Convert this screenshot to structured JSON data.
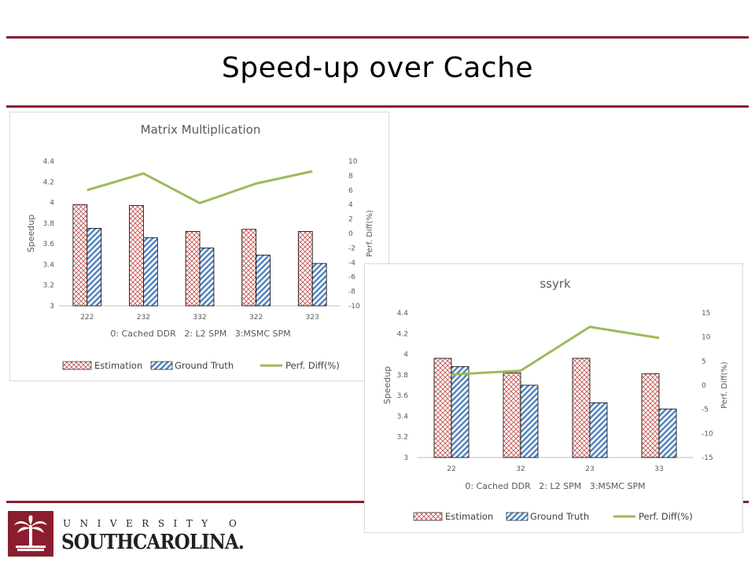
{
  "slide": {
    "title": "Speed-up over Cache",
    "logo_top": "UNIVERSITY OF",
    "logo_bottom": "SOUTHCAROLINA.",
    "rule_color": "#8b1e2e",
    "logo_color": "#8b1e2e"
  },
  "chart_data": [
    {
      "type": "bar",
      "title": "Matrix Multiplication",
      "xlabel": "0: Cached DDR   2: L2 SPM   3:MSMC SPM",
      "ylabel": "Speedup",
      "y2label": "Perf. Diff(%)",
      "ylim": [
        3,
        4.4
      ],
      "yticks": [
        "3",
        "3.2",
        "3.4",
        "3.6",
        "3.8",
        "4",
        "4.2",
        "4.4"
      ],
      "y2lim": [
        -10,
        10
      ],
      "y2ticks": [
        "-10",
        "-8",
        "-6",
        "-4",
        "-2",
        "0",
        "2",
        "4",
        "6",
        "8",
        "10"
      ],
      "categories": [
        "222",
        "232",
        "332",
        "322",
        "323"
      ],
      "series": [
        {
          "name": "Estimation",
          "kind": "bar",
          "values": [
            3.98,
            3.97,
            3.72,
            3.74,
            3.72
          ]
        },
        {
          "name": "Ground Truth",
          "kind": "bar",
          "values": [
            3.75,
            3.66,
            3.56,
            3.49,
            3.41
          ]
        },
        {
          "name": "Perf. Diff(%)",
          "kind": "line",
          "axis": "right",
          "values": [
            6.0,
            8.3,
            4.2,
            6.9,
            8.6
          ]
        }
      ],
      "legend_position": "bottom",
      "grid": false,
      "colors": {
        "estimation": "#c0504d",
        "ground_truth": "#4f81bd",
        "line": "#9bbb59"
      }
    },
    {
      "type": "bar",
      "title": "ssyrk",
      "xlabel": "0: Cached DDR   2: L2 SPM   3:MSMC SPM",
      "ylabel": "Speedup",
      "y2label": "Perf. Diff(%)",
      "ylim": [
        3,
        4.4
      ],
      "yticks": [
        "3",
        "3.2",
        "3.4",
        "3.6",
        "3.8",
        "4",
        "4.2",
        "4.4"
      ],
      "y2lim": [
        -15,
        15
      ],
      "y2ticks": [
        "-15",
        "-10",
        "-5",
        "0",
        "5",
        "10",
        "15"
      ],
      "categories": [
        "22",
        "32",
        "23",
        "33"
      ],
      "series": [
        {
          "name": "Estimation",
          "kind": "bar",
          "values": [
            3.96,
            3.82,
            3.96,
            3.81
          ]
        },
        {
          "name": "Ground Truth",
          "kind": "bar",
          "values": [
            3.88,
            3.7,
            3.53,
            3.47
          ]
        },
        {
          "name": "Perf. Diff(%)",
          "kind": "line",
          "axis": "right",
          "values": [
            2.2,
            3.0,
            12.1,
            9.8
          ]
        }
      ],
      "legend_position": "bottom",
      "grid": false,
      "colors": {
        "estimation": "#c0504d",
        "ground_truth": "#4f81bd",
        "line": "#9bbb59"
      }
    }
  ]
}
